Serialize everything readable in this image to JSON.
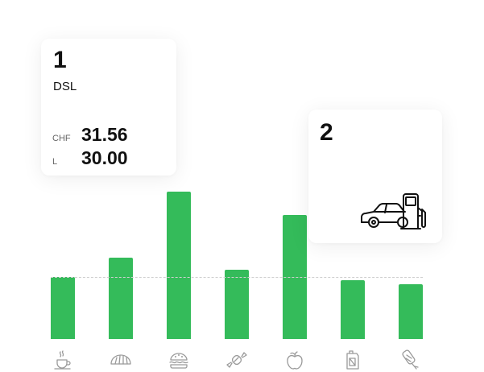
{
  "colors": {
    "bar": "#34bb5a",
    "average_line": "#cfcfcf",
    "icon": "#9a9a9a"
  },
  "chart_data": {
    "type": "bar",
    "categories": [
      "coffee",
      "bread",
      "burger",
      "candy",
      "fruit",
      "fuel",
      "ice-cream"
    ],
    "values": [
      42,
      55,
      100,
      47,
      84,
      40,
      37
    ],
    "average": 42,
    "ylim": [
      0,
      100
    ],
    "grid": false
  },
  "cards": [
    {
      "number": "1",
      "fuel_type": "DSL",
      "rows": [
        {
          "label": "CHF",
          "value": "31.56"
        },
        {
          "label": "L",
          "value": "30.00"
        }
      ]
    },
    {
      "number": "2",
      "icon": "car-fuel-pump-icon"
    }
  ],
  "category_icons": [
    "coffee-cup-icon",
    "bread-icon",
    "burger-icon",
    "candy-icon",
    "apple-icon",
    "fuel-canister-icon",
    "ice-cream-icon"
  ]
}
